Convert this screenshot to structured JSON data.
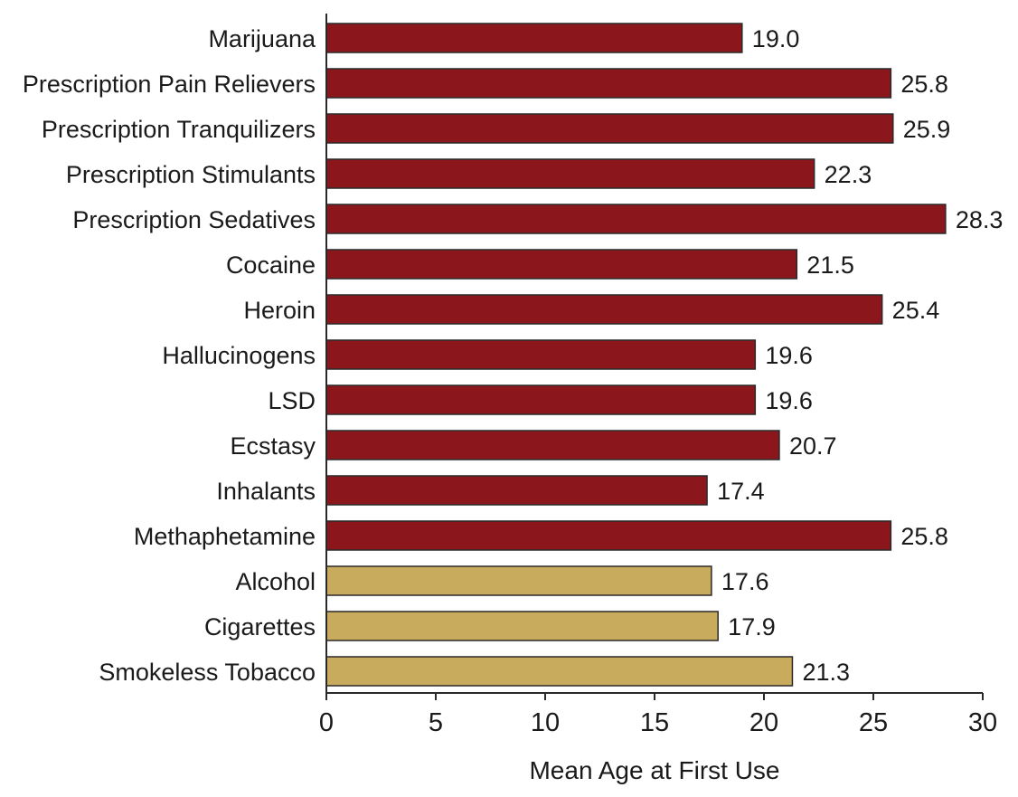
{
  "chart_data": {
    "type": "bar",
    "orientation": "horizontal",
    "title": "",
    "xlabel": "Mean Age at First Use",
    "ylabel": "",
    "xlim": [
      0,
      30
    ],
    "x_ticks": [
      0,
      5,
      10,
      15,
      20,
      25,
      30
    ],
    "grid": false,
    "colors": {
      "illicit": "#8b171d",
      "legal": "#c8ab5c"
    },
    "categories": [
      "Marijuana",
      "Prescription Pain Relievers",
      "Prescription Tranquilizers",
      "Prescription Stimulants",
      "Prescription Sedatives",
      "Cocaine",
      "Heroin",
      "Hallucinogens",
      "LSD",
      "Ecstasy",
      "Inhalants",
      "Methaphetamine",
      "Alcohol",
      "Cigarettes",
      "Smokeless Tobacco"
    ],
    "values": [
      19.0,
      25.8,
      25.9,
      22.3,
      28.3,
      21.5,
      25.4,
      19.6,
      19.6,
      20.7,
      17.4,
      25.8,
      17.6,
      17.9,
      21.3
    ],
    "value_labels": [
      "19.0",
      "25.8",
      "25.9",
      "22.3",
      "28.3",
      "21.5",
      "25.4",
      "19.6",
      "19.6",
      "20.7",
      "17.4",
      "25.8",
      "17.6",
      "17.9",
      "21.3"
    ],
    "bar_groups": [
      "illicit",
      "illicit",
      "illicit",
      "illicit",
      "illicit",
      "illicit",
      "illicit",
      "illicit",
      "illicit",
      "illicit",
      "illicit",
      "illicit",
      "legal",
      "legal",
      "legal"
    ]
  }
}
